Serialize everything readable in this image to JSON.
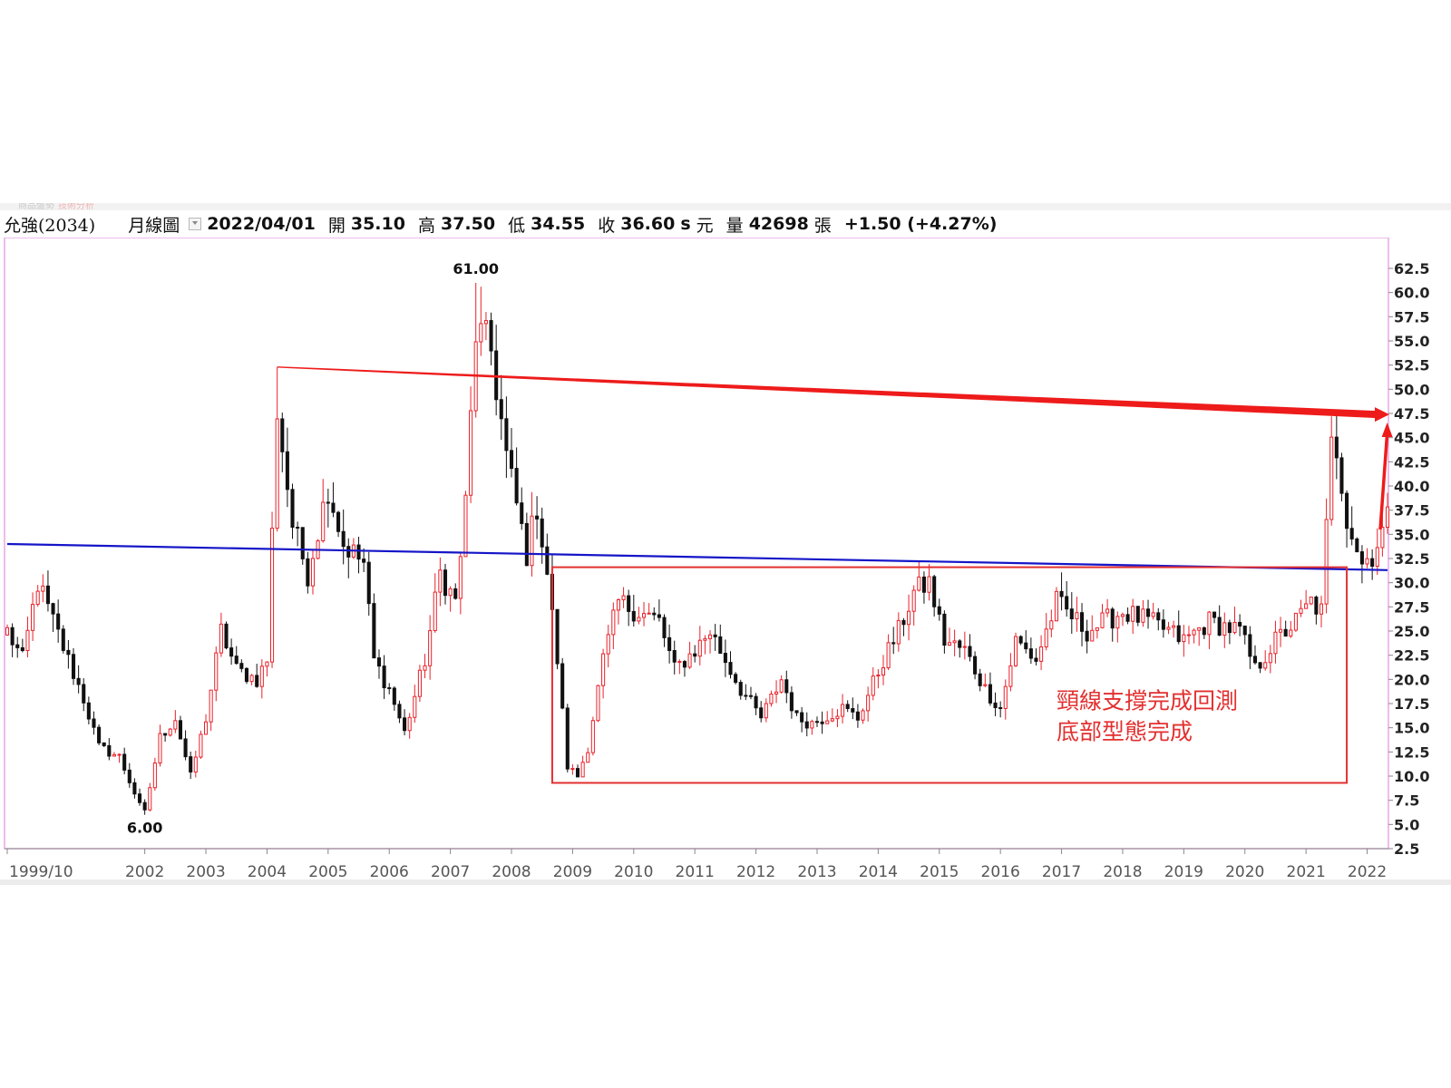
{
  "app_strip": {
    "left_text": "商品盤勢",
    "tab_text": "技術分析"
  },
  "header": {
    "stock": "允強(2034)",
    "period": "月線圖",
    "date": "2022/04/01",
    "open_label": "開",
    "open": "35.10",
    "high_label": "高",
    "high": "37.50",
    "low_label": "低",
    "low": "34.55",
    "close_label": "收",
    "close": "36.60",
    "close_suffix": "s",
    "unit": "元",
    "volume_label": "量",
    "volume": "42698",
    "volume_unit": "張",
    "change": "+1.50 (+4.27%)"
  },
  "chart_data": {
    "type": "candlestick",
    "title": "",
    "xlabel": "",
    "ylabel": "",
    "x_range": [
      "1999-10",
      "2022-05"
    ],
    "ylim": [
      2.5,
      64
    ],
    "y_ticks": [
      "62.5",
      "60.0",
      "57.5",
      "55.0",
      "52.5",
      "50.0",
      "47.5",
      "45.0",
      "42.5",
      "40.0",
      "37.5",
      "35.0",
      "32.5",
      "30.0",
      "27.5",
      "25.0",
      "22.5",
      "20.0",
      "17.5",
      "15.0",
      "12.5",
      "10.0",
      "7.5",
      "5.0",
      "2.5"
    ],
    "x_ticks": [
      "1999/10",
      "2002",
      "2003",
      "2004",
      "2005",
      "2006",
      "2007",
      "2008",
      "2009",
      "2010",
      "2011",
      "2012",
      "2013",
      "2014",
      "2015",
      "2016",
      "2017",
      "2018",
      "2019",
      "2020",
      "2021",
      "2022"
    ],
    "grid": false,
    "colors": {
      "up": "#e8222a",
      "down": "#111111",
      "resistance": "#ee1b1b",
      "support": "#1515c8",
      "box": "#e33030",
      "frame": "#e6a8e6"
    },
    "trend_lines": [
      {
        "color": "#ee1b1b",
        "from": [
          "2004-03",
          52.3
        ],
        "to": [
          "2022-05",
          47.4
        ],
        "arrow": true
      },
      {
        "color": "#1515c8",
        "from": [
          "1999-10",
          34.0
        ],
        "to": [
          "2022-05",
          31.3
        ]
      }
    ],
    "arrows": [
      {
        "color": "#ee1b1b",
        "from": [
          "2022-05",
          35.5
        ],
        "to": [
          "2022-06",
          46.0
        ]
      }
    ],
    "box": {
      "from": [
        "2008-09",
        9.3
      ],
      "to": [
        "2021-09",
        31.6
      ],
      "color": "#e33030"
    },
    "peak_labels": [
      {
        "date": "2007-06",
        "value": 61.0,
        "text": "61.00",
        "position": "above"
      },
      {
        "date": "2002-01",
        "value": 6.0,
        "text": "6.00",
        "position": "below"
      }
    ],
    "annotation": {
      "lines": [
        "頸線支撐完成回測",
        "底部型態完成"
      ],
      "color": "#e33030",
      "date": "2016-12",
      "value": 17.0
    },
    "keypoints": [
      [
        "1999-10",
        25
      ],
      [
        "2000-01",
        22
      ],
      [
        "2000-04",
        30
      ],
      [
        "2000-07",
        26
      ],
      [
        "2001-01",
        18
      ],
      [
        "2001-04",
        13
      ],
      [
        "2001-08",
        12
      ],
      [
        "2001-12",
        7
      ],
      [
        "2002-01",
        6.3
      ],
      [
        "2002-04",
        14
      ],
      [
        "2002-07",
        16
      ],
      [
        "2002-10",
        10
      ],
      [
        "2003-01",
        16
      ],
      [
        "2003-04",
        25
      ],
      [
        "2003-07",
        21
      ],
      [
        "2003-11",
        20
      ],
      [
        "2004-01",
        22
      ],
      [
        "2004-03",
        48
      ],
      [
        "2004-06",
        36
      ],
      [
        "2004-09",
        31
      ],
      [
        "2005-01",
        40
      ],
      [
        "2005-04",
        34
      ],
      [
        "2005-08",
        32
      ],
      [
        "2005-10",
        22
      ],
      [
        "2006-01",
        19
      ],
      [
        "2006-04",
        14.5
      ],
      [
        "2006-08",
        22
      ],
      [
        "2006-11",
        31
      ],
      [
        "2007-02",
        28
      ],
      [
        "2007-04",
        38
      ],
      [
        "2007-06",
        56
      ],
      [
        "2007-09",
        54
      ],
      [
        "2007-12",
        43
      ],
      [
        "2008-04",
        33
      ],
      [
        "2008-06",
        38
      ],
      [
        "2008-08",
        31
      ],
      [
        "2008-10",
        22
      ],
      [
        "2008-12",
        11
      ],
      [
        "2009-02",
        10
      ],
      [
        "2009-04",
        13
      ],
      [
        "2009-07",
        22
      ],
      [
        "2009-10",
        28
      ],
      [
        "2010-02",
        27
      ],
      [
        "2010-06",
        26
      ],
      [
        "2010-09",
        21
      ],
      [
        "2011-01",
        23
      ],
      [
        "2011-04",
        25
      ],
      [
        "2011-07",
        22
      ],
      [
        "2011-10",
        19
      ],
      [
        "2012-02",
        16
      ],
      [
        "2012-06",
        20
      ],
      [
        "2012-09",
        16
      ],
      [
        "2012-12",
        15.5
      ],
      [
        "2013-06",
        17
      ],
      [
        "2013-09",
        16
      ],
      [
        "2014-02",
        22
      ],
      [
        "2014-05",
        25
      ],
      [
        "2014-08",
        29
      ],
      [
        "2014-11",
        30
      ],
      [
        "2015-02",
        24
      ],
      [
        "2015-06",
        23
      ],
      [
        "2015-10",
        19
      ],
      [
        "2016-01",
        17
      ],
      [
        "2016-04",
        24
      ],
      [
        "2016-08",
        22
      ],
      [
        "2016-12",
        28
      ],
      [
        "2017-06",
        25
      ],
      [
        "2018-01",
        27
      ],
      [
        "2018-06",
        26
      ],
      [
        "2018-10",
        25
      ],
      [
        "2019-01",
        24
      ],
      [
        "2019-06",
        26
      ],
      [
        "2019-12",
        25
      ],
      [
        "2020-03",
        21
      ],
      [
        "2020-07",
        24
      ],
      [
        "2020-11",
        26
      ],
      [
        "2021-02",
        28
      ],
      [
        "2021-04",
        27
      ],
      [
        "2021-06",
        44
      ],
      [
        "2021-07",
        44
      ],
      [
        "2021-09",
        37
      ],
      [
        "2021-12",
        32
      ],
      [
        "2022-02",
        33
      ],
      [
        "2022-05",
        36.5
      ]
    ]
  }
}
